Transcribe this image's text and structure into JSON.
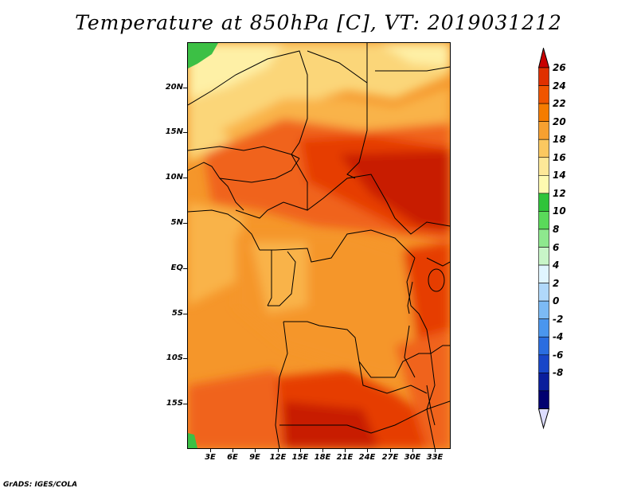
{
  "title": "Temperature at 850hPa [C], VT: 2019031212",
  "credit": "GrADS: IGES/COLA",
  "lat_labels": [
    "20N",
    "15N",
    "10N",
    "5N",
    "EQ",
    "5S",
    "10S",
    "15S"
  ],
  "lon_labels": [
    "3E",
    "6E",
    "9E",
    "12E",
    "15E",
    "18E",
    "21E",
    "24E",
    "27E",
    "30E",
    "33E"
  ],
  "colorbar": {
    "labels": [
      "26",
      "24",
      "22",
      "20",
      "18",
      "16",
      "14",
      "12",
      "10",
      "8",
      "6",
      "4",
      "2",
      "0",
      "-2",
      "-4",
      "-6",
      "-8"
    ],
    "colors": [
      "#c80000",
      "#e03000",
      "#f05500",
      "#f57c00",
      "#f7a030",
      "#fbc860",
      "#fde898",
      "#fefab0",
      "#2fc43a",
      "#5ada5a",
      "#8ee88e",
      "#c8f5c8",
      "#e0f5ff",
      "#b0d8fb",
      "#7cbaf5",
      "#4a96ee",
      "#2a6de0",
      "#1846c8",
      "#0a1e9c",
      "#000070",
      "#ddddff"
    ]
  },
  "map": {
    "fill_colors": {
      "dark_red": "#c81e00",
      "red": "#e63c05",
      "red_orange": "#f0641e",
      "orange": "#f5962a",
      "light_orange": "#f9b349",
      "yellow": "#fbd679",
      "pale_yellow": "#fef0a6",
      "green": "#3cc045",
      "land_border": "#000000"
    }
  }
}
